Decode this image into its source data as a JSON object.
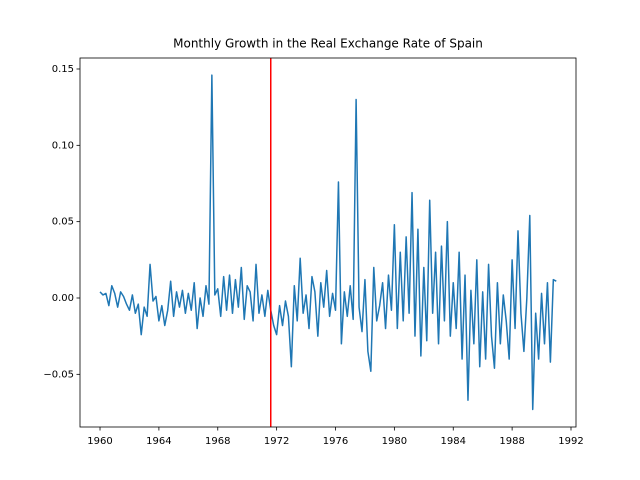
{
  "chart_data": {
    "type": "line",
    "title": "Monthly Growth in the Real Exchange Rate of Spain",
    "x": [
      1960,
      1960.2,
      1960.4,
      1960.6,
      1960.8,
      1961,
      1961.2,
      1961.4,
      1961.6,
      1961.8,
      1962,
      1962.2,
      1962.4,
      1962.6,
      1962.8,
      1963,
      1963.2,
      1963.4,
      1963.6,
      1963.8,
      1964,
      1964.2,
      1964.4,
      1964.6,
      1964.8,
      1965,
      1965.2,
      1965.4,
      1965.6,
      1965.8,
      1966,
      1966.2,
      1966.4,
      1966.6,
      1966.8,
      1967,
      1967.2,
      1967.4,
      1967.6,
      1967.8,
      1968,
      1968.2,
      1968.4,
      1968.6,
      1968.8,
      1969,
      1969.2,
      1969.4,
      1969.6,
      1969.8,
      1970,
      1970.2,
      1970.4,
      1970.6,
      1970.8,
      1971,
      1971.2,
      1971.4,
      1971.6,
      1971.8,
      1972,
      1972.2,
      1972.4,
      1972.6,
      1972.8,
      1973,
      1973.2,
      1973.4,
      1973.6,
      1973.8,
      1974,
      1974.2,
      1974.4,
      1974.6,
      1974.8,
      1975,
      1975.2,
      1975.4,
      1975.6,
      1975.8,
      1976,
      1976.2,
      1976.4,
      1976.6,
      1976.8,
      1977,
      1977.2,
      1977.4,
      1977.6,
      1977.8,
      1978,
      1978.2,
      1978.4,
      1978.6,
      1978.8,
      1979,
      1979.2,
      1979.4,
      1979.6,
      1979.8,
      1980,
      1980.2,
      1980.4,
      1980.6,
      1980.8,
      1981,
      1981.2,
      1981.4,
      1981.6,
      1981.8,
      1982,
      1982.2,
      1982.4,
      1982.6,
      1982.8,
      1983,
      1983.2,
      1983.4,
      1983.6,
      1983.8,
      1984,
      1984.2,
      1984.4,
      1984.6,
      1984.8,
      1985,
      1985.2,
      1985.4,
      1985.6,
      1985.8,
      1986,
      1986.2,
      1986.4,
      1986.6,
      1986.8,
      1987,
      1987.2,
      1987.4,
      1987.6,
      1987.8,
      1988,
      1988.2,
      1988.4,
      1988.6,
      1988.8,
      1989,
      1989.2,
      1989.4,
      1989.6,
      1989.8,
      1990,
      1990.2,
      1990.4,
      1990.6,
      1990.8,
      1991
    ],
    "series": [
      {
        "color": "#1f77b4",
        "values": [
          0.004,
          0.002,
          0.003,
          -0.005,
          0.008,
          0.003,
          -0.006,
          0.004,
          0.001,
          -0.004,
          -0.008,
          0.002,
          -0.01,
          -0.004,
          -0.024,
          -0.006,
          -0.012,
          0.022,
          -0.002,
          0.001,
          -0.015,
          -0.005,
          -0.018,
          -0.008,
          0.011,
          -0.012,
          0.004,
          -0.006,
          0.005,
          -0.01,
          0.003,
          -0.008,
          0.01,
          -0.02,
          0.0,
          -0.012,
          0.008,
          -0.004,
          0.146,
          0.002,
          0.006,
          -0.012,
          0.014,
          -0.008,
          0.015,
          -0.01,
          0.012,
          -0.006,
          0.02,
          -0.014,
          0.008,
          0.004,
          -0.015,
          0.022,
          -0.01,
          0.002,
          -0.012,
          0.005,
          -0.008,
          -0.018,
          -0.024,
          -0.005,
          -0.018,
          -0.002,
          -0.012,
          -0.045,
          0.008,
          -0.015,
          0.026,
          -0.01,
          0.002,
          -0.02,
          0.014,
          0.004,
          -0.025,
          0.01,
          -0.006,
          0.018,
          -0.012,
          0.003,
          -0.008,
          0.076,
          -0.03,
          0.004,
          -0.012,
          0.008,
          -0.014,
          0.13,
          -0.006,
          -0.022,
          0.012,
          -0.035,
          -0.048,
          0.02,
          -0.015,
          -0.005,
          0.01,
          -0.02,
          0.015,
          -0.008,
          0.048,
          -0.02,
          0.03,
          -0.015,
          0.04,
          -0.01,
          0.069,
          -0.025,
          0.045,
          -0.038,
          0.02,
          -0.028,
          0.064,
          -0.01,
          0.03,
          -0.03,
          0.034,
          -0.015,
          0.05,
          -0.025,
          0.01,
          -0.02,
          0.03,
          -0.04,
          0.015,
          -0.067,
          0.005,
          -0.03,
          0.025,
          -0.045,
          0.004,
          -0.04,
          0.022,
          -0.025,
          -0.046,
          0.01,
          -0.03,
          0.002,
          -0.015,
          -0.04,
          0.025,
          -0.02,
          0.044,
          -0.01,
          -0.035,
          0.0,
          0.054,
          -0.073,
          -0.01,
          -0.04,
          0.003,
          -0.03,
          0.01,
          -0.042,
          0.012,
          0.011
        ]
      }
    ],
    "vline": {
      "x": 1971.6,
      "color": "#ff0000"
    },
    "xlim": [
      1958.64,
      1992.34
    ],
    "xticks": [
      1960,
      1964,
      1968,
      1972,
      1976,
      1980,
      1984,
      1988,
      1992
    ],
    "ylim": [
      -0.0845,
      0.1572
    ],
    "yticks": [
      {
        "value": -0.05,
        "label": "−0.05"
      },
      {
        "value": 0,
        "label": "0.00"
      },
      {
        "value": 0.05,
        "label": "0.05"
      },
      {
        "value": 0.1,
        "label": "0.10"
      },
      {
        "value": 0.15,
        "label": "0.15"
      }
    ]
  }
}
